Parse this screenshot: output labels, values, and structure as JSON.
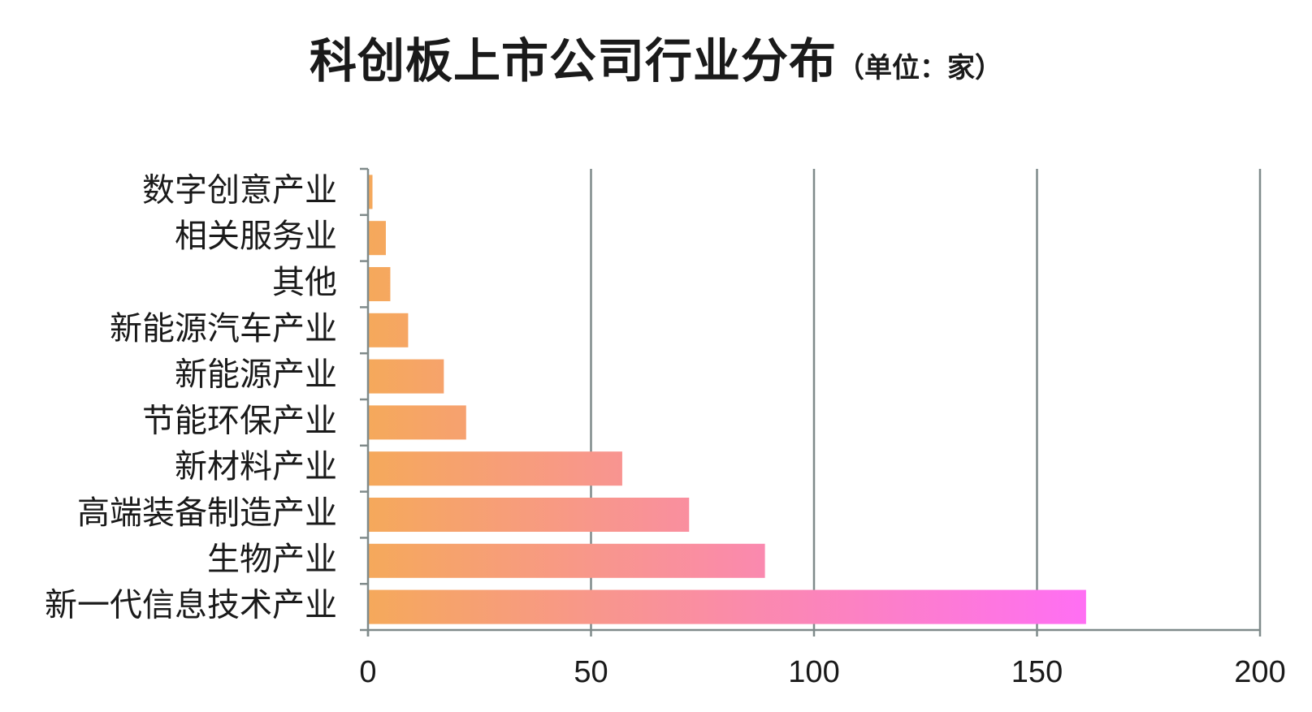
{
  "chart_data": {
    "type": "bar",
    "orientation": "horizontal",
    "title": "科创板上市公司行业分布",
    "title_unit": "（单位：家）",
    "categories": [
      "新一代信息技术产业",
      "生物产业",
      "高端装备制造产业",
      "新材料产业",
      "节能环保产业",
      "新能源产业",
      "新能源汽车产业",
      "其他",
      "相关服务业",
      "数字创意产业"
    ],
    "values": [
      161,
      89,
      72,
      57,
      22,
      17,
      9,
      5,
      4,
      1
    ],
    "xlim": [
      0,
      200
    ],
    "xticks": [
      0,
      50,
      100,
      150,
      200
    ],
    "grid": true,
    "legend": "none",
    "colors": {
      "bar_start": "#f5a95b",
      "bar_end": "#ff6ef5",
      "axis": "#7f8a8a",
      "grid": "#7f8a8a"
    }
  }
}
